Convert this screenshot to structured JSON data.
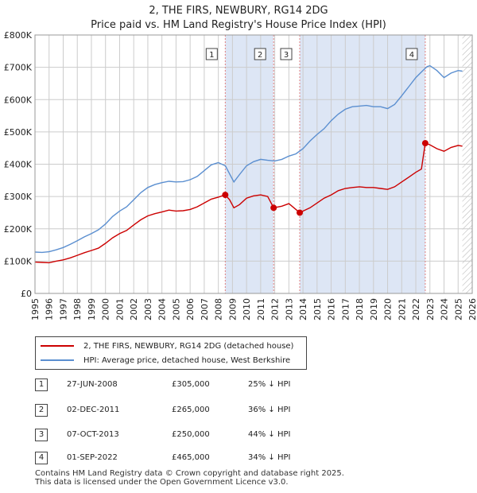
{
  "header": {
    "title": "2, THE FIRS, NEWBURY, RG14 2DG",
    "subtitle": "Price paid vs. HM Land Registry's House Price Index (HPI)"
  },
  "chart_data": {
    "type": "line",
    "title": "2, THE FIRS, NEWBURY, RG14 2DG",
    "xlim": [
      1995,
      2026
    ],
    "ylim": [
      0,
      800000
    ],
    "x_ticks": [
      "1995",
      "1996",
      "1997",
      "1998",
      "1999",
      "2000",
      "2001",
      "2002",
      "2003",
      "2004",
      "2005",
      "2006",
      "2007",
      "2008",
      "2009",
      "2010",
      "2011",
      "2012",
      "2013",
      "2014",
      "2015",
      "2016",
      "2017",
      "2018",
      "2019",
      "2020",
      "2021",
      "2022",
      "2023",
      "2024",
      "2025",
      "2026"
    ],
    "y_ticks": [
      {
        "value": 0,
        "label": "£0"
      },
      {
        "value": 100000,
        "label": "£100K"
      },
      {
        "value": 200000,
        "label": "£200K"
      },
      {
        "value": 300000,
        "label": "£300K"
      },
      {
        "value": 400000,
        "label": "£400K"
      },
      {
        "value": 500000,
        "label": "£500K"
      },
      {
        "value": 600000,
        "label": "£600K"
      },
      {
        "value": 700000,
        "label": "£700K"
      },
      {
        "value": 800000,
        "label": "£800K"
      }
    ],
    "grid": true,
    "data_end": 2025.3,
    "colors": {
      "price": "#cc0000",
      "hpi": "#5b8fd0",
      "band": "#dde6f5",
      "vline": "#e08080",
      "grid": "#cccccc",
      "hatch": "#bbbbbb"
    },
    "series": [
      {
        "name": "2, THE FIRS, NEWBURY, RG14 2DG (detached house)",
        "points": [
          [
            1995.0,
            97000
          ],
          [
            1995.5,
            96000
          ],
          [
            1996.0,
            95000
          ],
          [
            1996.5,
            100000
          ],
          [
            1997.0,
            104000
          ],
          [
            1997.5,
            110000
          ],
          [
            1998.0,
            118000
          ],
          [
            1998.5,
            126000
          ],
          [
            1999.0,
            133000
          ],
          [
            1999.5,
            140000
          ],
          [
            2000.0,
            155000
          ],
          [
            2000.5,
            172000
          ],
          [
            2001.0,
            185000
          ],
          [
            2001.5,
            195000
          ],
          [
            2002.0,
            212000
          ],
          [
            2002.5,
            228000
          ],
          [
            2003.0,
            240000
          ],
          [
            2003.5,
            247000
          ],
          [
            2004.0,
            252000
          ],
          [
            2004.5,
            258000
          ],
          [
            2005.0,
            255000
          ],
          [
            2005.5,
            256000
          ],
          [
            2006.0,
            260000
          ],
          [
            2006.5,
            268000
          ],
          [
            2007.0,
            280000
          ],
          [
            2007.5,
            292000
          ],
          [
            2008.0,
            298000
          ],
          [
            2008.49,
            305000
          ],
          [
            2008.8,
            290000
          ],
          [
            2009.1,
            265000
          ],
          [
            2009.5,
            275000
          ],
          [
            2010.0,
            295000
          ],
          [
            2010.5,
            302000
          ],
          [
            2011.0,
            305000
          ],
          [
            2011.5,
            300000
          ],
          [
            2011.92,
            265000
          ],
          [
            2012.5,
            270000
          ],
          [
            2013.0,
            278000
          ],
          [
            2013.77,
            250000
          ],
          [
            2014.5,
            265000
          ],
          [
            2015.0,
            280000
          ],
          [
            2015.5,
            295000
          ],
          [
            2016.0,
            305000
          ],
          [
            2016.5,
            318000
          ],
          [
            2017.0,
            325000
          ],
          [
            2017.5,
            328000
          ],
          [
            2018.0,
            330000
          ],
          [
            2018.5,
            328000
          ],
          [
            2019.0,
            328000
          ],
          [
            2019.5,
            325000
          ],
          [
            2020.0,
            322000
          ],
          [
            2020.5,
            330000
          ],
          [
            2021.0,
            345000
          ],
          [
            2021.5,
            360000
          ],
          [
            2022.0,
            375000
          ],
          [
            2022.4,
            385000
          ],
          [
            2022.67,
            465000
          ],
          [
            2023.0,
            460000
          ],
          [
            2023.5,
            448000
          ],
          [
            2024.0,
            440000
          ],
          [
            2024.5,
            452000
          ],
          [
            2025.0,
            458000
          ],
          [
            2025.3,
            456000
          ]
        ]
      },
      {
        "name": "HPI: Average price, detached house, West Berkshire",
        "points": [
          [
            1995.0,
            128000
          ],
          [
            1995.5,
            127000
          ],
          [
            1996.0,
            129000
          ],
          [
            1996.5,
            135000
          ],
          [
            1997.0,
            142000
          ],
          [
            1997.5,
            152000
          ],
          [
            1998.0,
            163000
          ],
          [
            1998.5,
            175000
          ],
          [
            1999.0,
            185000
          ],
          [
            1999.5,
            197000
          ],
          [
            2000.0,
            215000
          ],
          [
            2000.5,
            238000
          ],
          [
            2001.0,
            255000
          ],
          [
            2001.5,
            268000
          ],
          [
            2002.0,
            290000
          ],
          [
            2002.5,
            312000
          ],
          [
            2003.0,
            328000
          ],
          [
            2003.5,
            337000
          ],
          [
            2004.0,
            343000
          ],
          [
            2004.5,
            347000
          ],
          [
            2005.0,
            345000
          ],
          [
            2005.5,
            346000
          ],
          [
            2006.0,
            352000
          ],
          [
            2006.5,
            362000
          ],
          [
            2007.0,
            380000
          ],
          [
            2007.5,
            398000
          ],
          [
            2008.0,
            405000
          ],
          [
            2008.5,
            395000
          ],
          [
            2008.8,
            370000
          ],
          [
            2009.1,
            345000
          ],
          [
            2009.5,
            368000
          ],
          [
            2010.0,
            395000
          ],
          [
            2010.5,
            408000
          ],
          [
            2011.0,
            415000
          ],
          [
            2011.5,
            412000
          ],
          [
            2012.0,
            410000
          ],
          [
            2012.5,
            415000
          ],
          [
            2013.0,
            425000
          ],
          [
            2013.5,
            432000
          ],
          [
            2014.0,
            448000
          ],
          [
            2014.5,
            472000
          ],
          [
            2015.0,
            492000
          ],
          [
            2015.5,
            510000
          ],
          [
            2016.0,
            535000
          ],
          [
            2016.5,
            555000
          ],
          [
            2017.0,
            570000
          ],
          [
            2017.5,
            578000
          ],
          [
            2018.0,
            580000
          ],
          [
            2018.5,
            582000
          ],
          [
            2019.0,
            578000
          ],
          [
            2019.5,
            578000
          ],
          [
            2020.0,
            572000
          ],
          [
            2020.5,
            585000
          ],
          [
            2021.0,
            612000
          ],
          [
            2021.5,
            640000
          ],
          [
            2022.0,
            668000
          ],
          [
            2022.5,
            690000
          ],
          [
            2022.8,
            702000
          ],
          [
            2023.0,
            705000
          ],
          [
            2023.5,
            690000
          ],
          [
            2024.0,
            668000
          ],
          [
            2024.5,
            682000
          ],
          [
            2025.0,
            690000
          ],
          [
            2025.3,
            688000
          ]
        ]
      }
    ],
    "transactions": [
      {
        "id": "1",
        "x": 2008.49,
        "price": 305000
      },
      {
        "id": "2",
        "x": 2011.92,
        "price": 265000
      },
      {
        "id": "3",
        "x": 2013.77,
        "price": 250000
      },
      {
        "id": "4",
        "x": 2022.67,
        "price": 465000
      }
    ]
  },
  "legend": {
    "items": [
      {
        "label": "2, THE FIRS, NEWBURY, RG14 2DG (detached house)",
        "color": "#cc0000"
      },
      {
        "label": "HPI: Average price, detached house, West Berkshire",
        "color": "#5b8fd0"
      }
    ]
  },
  "table": {
    "rows": [
      {
        "num": "1",
        "date": "27-JUN-2008",
        "price": "£305,000",
        "hpi": "25% ↓ HPI"
      },
      {
        "num": "2",
        "date": "02-DEC-2011",
        "price": "£265,000",
        "hpi": "36% ↓ HPI"
      },
      {
        "num": "3",
        "date": "07-OCT-2013",
        "price": "£250,000",
        "hpi": "44% ↓ HPI"
      },
      {
        "num": "4",
        "date": "01-SEP-2022",
        "price": "£465,000",
        "hpi": "34% ↓ HPI"
      }
    ]
  },
  "footer": {
    "line1": "Contains HM Land Registry data © Crown copyright and database right 2025.",
    "line2": "This data is licensed under the Open Government Licence v3.0."
  }
}
